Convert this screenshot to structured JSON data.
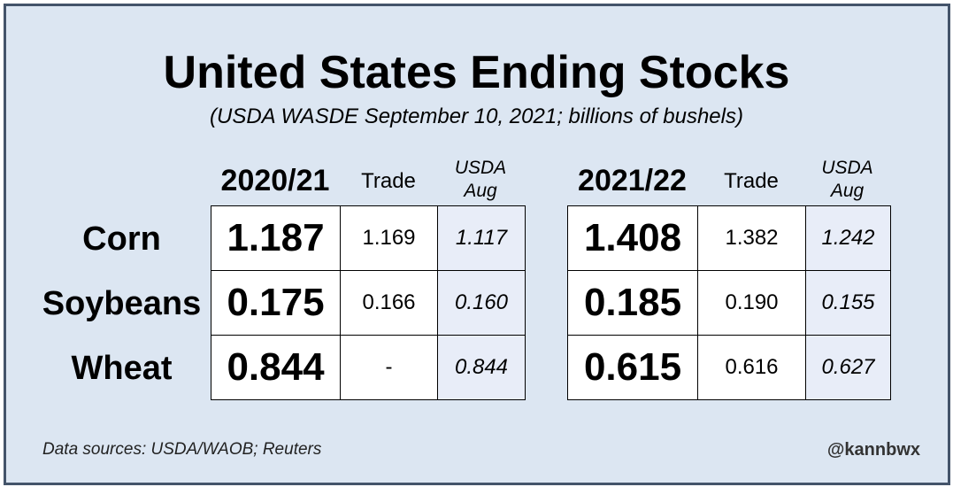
{
  "chart_data": {
    "type": "table",
    "title": "United States Ending Stocks",
    "subtitle": "(USDA WASDE September 10, 2021; billions of bushels)",
    "commodities": [
      "Corn",
      "Soybeans",
      "Wheat"
    ],
    "tables": [
      {
        "year": "2020/21",
        "trade_label": "Trade",
        "usda_label_line1": "USDA",
        "usda_label_line2": "Aug",
        "rows": [
          {
            "value": "1.187",
            "trade": "1.169",
            "usda_aug": "1.117"
          },
          {
            "value": "0.175",
            "trade": "0.166",
            "usda_aug": "0.160"
          },
          {
            "value": "0.844",
            "trade": "-",
            "usda_aug": "0.844"
          }
        ]
      },
      {
        "year": "2021/22",
        "trade_label": "Trade",
        "usda_label_line1": "USDA",
        "usda_label_line2": "Aug",
        "rows": [
          {
            "value": "1.408",
            "trade": "1.382",
            "usda_aug": "1.242"
          },
          {
            "value": "0.185",
            "trade": "0.190",
            "usda_aug": "0.155"
          },
          {
            "value": "0.615",
            "trade": "0.616",
            "usda_aug": "0.627"
          }
        ]
      }
    ]
  },
  "footer": {
    "source": "Data sources: USDA/WAOB; Reuters",
    "handle": "@kannbwx"
  },
  "colors": {
    "background": "#dce6f2",
    "border": "#44546a",
    "usda_cell": "#e8edf8"
  }
}
